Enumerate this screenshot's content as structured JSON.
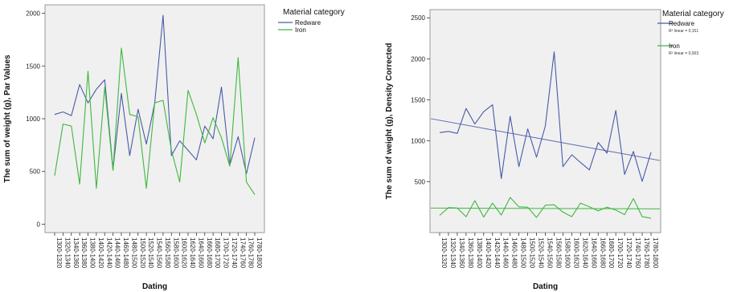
{
  "chart_data": [
    {
      "type": "line",
      "xlabel": "Dating",
      "ylabel": "The sum of weight (g), Par Values",
      "categories": [
        "1300-1320",
        "1320-1340",
        "1340-1360",
        "1360-1380",
        "1380-1400",
        "1400-1420",
        "1420-1440",
        "1440-1460",
        "1460-1480",
        "1480-1500",
        "1500-1520",
        "1520-1540",
        "1540-1560",
        "1560-1580",
        "1580-1600",
        "1600-1620",
        "1620-1640",
        "1640-1660",
        "1660-1680",
        "1680-1700",
        "1700-1720",
        "1720-1740",
        "1740-1760",
        "1760-1780",
        "1780-1800"
      ],
      "ylim": [
        -80,
        2080
      ],
      "yticks": [
        0,
        500,
        1000,
        1500,
        2000
      ],
      "grid": false,
      "legend": {
        "title": "Material category",
        "position": "right"
      },
      "series": [
        {
          "name": "Redware",
          "color": "#4a5aa8",
          "values": [
            1040,
            1065,
            1030,
            1325,
            1150,
            1280,
            1370,
            520,
            1240,
            650,
            1090,
            760,
            1150,
            1980,
            650,
            790,
            700,
            610,
            930,
            810,
            1300,
            560,
            830,
            480,
            820
          ]
        },
        {
          "name": "Iron",
          "color": "#3fb83f",
          "values": [
            460,
            950,
            930,
            380,
            1450,
            340,
            1300,
            510,
            1670,
            1040,
            1020,
            340,
            1150,
            1175,
            700,
            400,
            1270,
            1040,
            770,
            1010,
            820,
            550,
            1580,
            400,
            280
          ]
        }
      ]
    },
    {
      "type": "line",
      "xlabel": "Dating",
      "ylabel": "The sum of weight (g), Density Corrected",
      "categories": [
        "1300-1320",
        "1320-1340",
        "1340-1360",
        "1360-1380",
        "1380-1400",
        "1400-1420",
        "1420-1440",
        "1440-1460",
        "1460-1480",
        "1480-1500",
        "1500-1520",
        "1520-1540",
        "1540-1560",
        "1560-1580",
        "1580-1600",
        "1600-1620",
        "1620-1640",
        "1640-1660",
        "1660-1680",
        "1680-1700",
        "1700-1720",
        "1720-1740",
        "1740-1760",
        "1760-1780",
        "1780-1800"
      ],
      "ylim": [
        -120,
        2600
      ],
      "yticks": [
        500,
        1000,
        1500,
        2000,
        2500
      ],
      "grid": false,
      "legend": {
        "title": "Material category",
        "position": "right"
      },
      "series": [
        {
          "name": "Redware",
          "color": "#4a5aa8",
          "r2_label": "R² linear = 0,151",
          "values": [
            1100,
            1115,
            1090,
            1395,
            1205,
            1355,
            1440,
            540,
            1300,
            685,
            1145,
            800,
            1180,
            2085,
            685,
            830,
            735,
            645,
            980,
            850,
            1370,
            590,
            870,
            505,
            860
          ]
        },
        {
          "name": "Iron",
          "color": "#3fb83f",
          "r2_label": "R² linear = 0,003",
          "values": [
            90,
            185,
            180,
            75,
            270,
            70,
            240,
            95,
            310,
            195,
            190,
            65,
            215,
            220,
            130,
            75,
            240,
            195,
            145,
            190,
            155,
            100,
            295,
            75,
            55
          ]
        }
      ],
      "fit_lines": [
        {
          "series": "Redware",
          "color": "#5a66b0",
          "start": 1270,
          "end": 760
        },
        {
          "series": "Iron",
          "color": "#3fb83f",
          "start": 180,
          "end": 170
        }
      ]
    }
  ]
}
